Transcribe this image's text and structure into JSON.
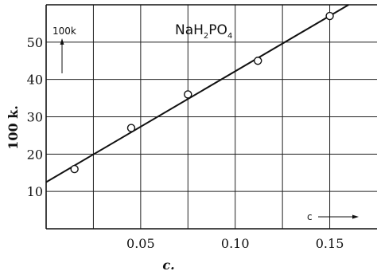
{
  "chart_data": {
    "type": "scatter",
    "title": "NaH2PO4",
    "title_parts": {
      "a": "NaH",
      "b": "2",
      "c": "PO",
      "d": "4"
    },
    "xlabel": "c.",
    "ylabel": "100 k.",
    "xlim": [
      0,
      0.175
    ],
    "ylim": [
      0,
      60
    ],
    "x_ticks": [
      0.05,
      0.1,
      0.15
    ],
    "x_tick_labels": [
      "0.05",
      "0.10",
      "0.15"
    ],
    "y_ticks": [
      10,
      20,
      30,
      40,
      50
    ],
    "y_tick_labels": [
      "10",
      "20",
      "30",
      "40",
      "50"
    ],
    "grid_x": [
      0.025,
      0.05,
      0.075,
      0.1,
      0.125,
      0.15
    ],
    "grid_y": [
      10,
      20,
      30,
      40,
      50
    ],
    "grid": true,
    "points": [
      {
        "x": 0.015,
        "y": 16
      },
      {
        "x": 0.045,
        "y": 27
      },
      {
        "x": 0.075,
        "y": 36
      },
      {
        "x": 0.112,
        "y": 45
      },
      {
        "x": 0.15,
        "y": 57
      }
    ],
    "fit_line": {
      "x": [
        0,
        0.16
      ],
      "y": [
        12.5,
        60
      ]
    },
    "annotations": {
      "y_arrow_label": "100k",
      "x_arrow_label": "c"
    }
  }
}
